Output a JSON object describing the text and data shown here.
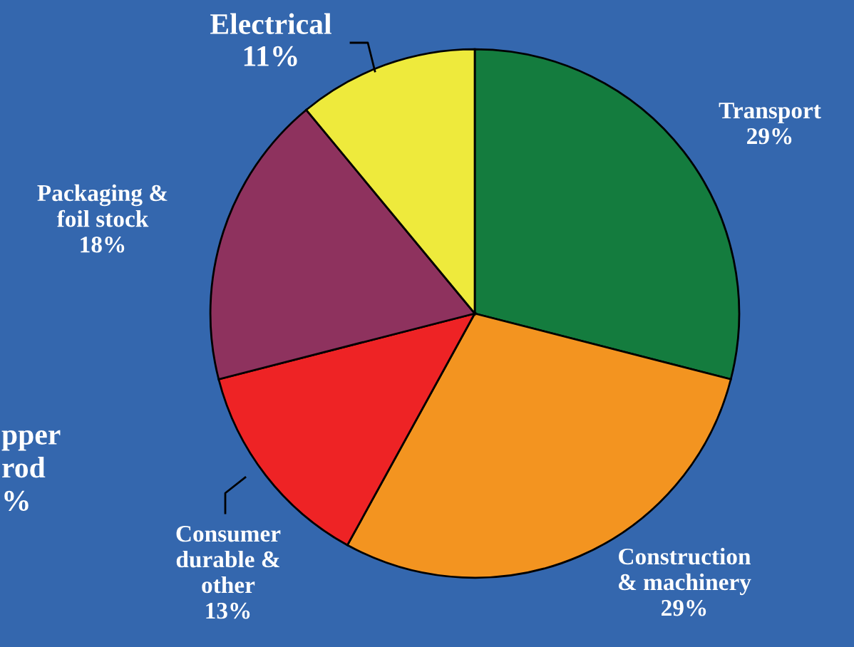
{
  "chart_data": {
    "type": "pie",
    "categories": [
      "Transport",
      "Construction\n& machinery",
      "Consumer\ndurable &\nother",
      "Packaging &\nfoil stock",
      "Electrical"
    ],
    "values": [
      29,
      29,
      13,
      18,
      11
    ],
    "value_labels": [
      "29%",
      "29%",
      "13%",
      "18%",
      "11%"
    ],
    "colors": [
      "#147c3e",
      "#f39420",
      "#ee2325",
      "#8e325e",
      "#eeea3c"
    ],
    "annotations": [
      "pper\nrod\n%"
    ]
  }
}
